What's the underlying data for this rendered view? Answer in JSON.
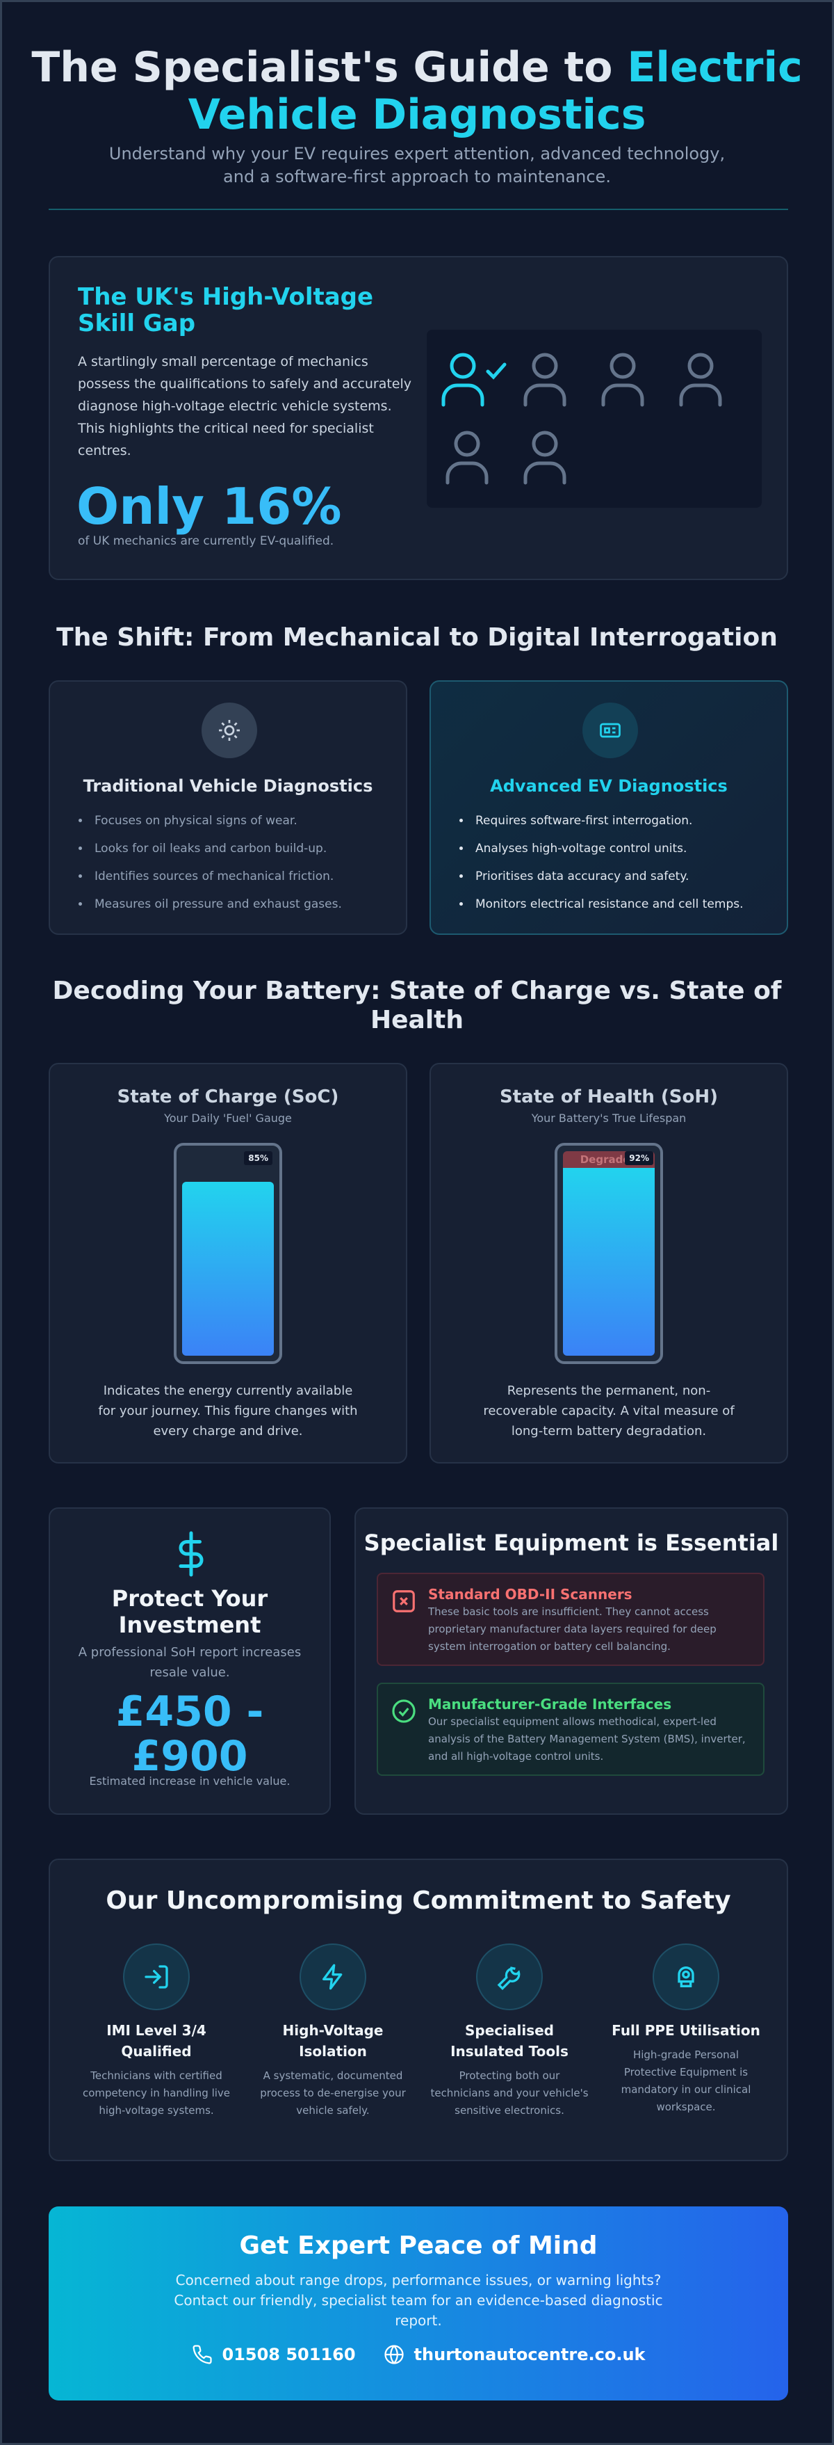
{
  "header": {
    "title_start": "The Specialist's Guide to ",
    "title_highlight": "Electric Vehicle Diagnostics",
    "subtitle": "Understand why your EV requires expert attention, advanced technology, and a software-first approach to maintenance."
  },
  "skill_gap": {
    "title": "The UK's High-Voltage Skill Gap",
    "body": "A startlingly small percentage of mechanics possess the qualifications to safely and accurately diagnose high-voltage electric vehicle systems. This highlights the critical need for specialist centres.",
    "stat": "Only 16%",
    "stat_caption": "of UK mechanics are currently EV-qualified."
  },
  "shift": {
    "title": "The Shift: From Mechanical to Digital Interrogation",
    "cards": [
      {
        "title": "Traditional Vehicle Diagnostics",
        "items": [
          "Focuses on physical signs of wear.",
          "Looks for oil leaks and carbon build-up.",
          "Identifies sources of mechanical friction.",
          "Measures oil pressure and exhaust gases."
        ]
      },
      {
        "title": "Advanced EV Diagnostics",
        "items": [
          "Requires software-first interrogation.",
          "Analyses high-voltage control units.",
          "Prioritises data accuracy and safety.",
          "Monitors electrical resistance and cell temps."
        ]
      }
    ]
  },
  "battery": {
    "title": "Decoding Your Battery: State of Charge vs. State of Health",
    "cards": [
      {
        "title": "State of Charge (SoC)",
        "subtitle": "Your Daily 'Fuel' Gauge",
        "level": 85,
        "level_label": "85%",
        "description": "Indicates the energy currently available for your journey. This figure changes with every charge and drive."
      },
      {
        "title": "State of Health (SoH)",
        "subtitle": "Your Battery's True Lifespan",
        "level": 92,
        "level_label": "92%",
        "degraded_label": "Degraded",
        "description": "Represents the permanent, non-recoverable capacity. A vital measure of long-term battery degradation."
      }
    ]
  },
  "investment": {
    "title": "Protect Your Investment",
    "body": "A professional SoH report increases resale value.",
    "amount": "£450 - £900",
    "caption": "Estimated increase in vehicle value."
  },
  "equipment": {
    "title": "Specialist Equipment is Essential",
    "items": [
      {
        "title": "Standard OBD-II Scanners",
        "body": "These basic tools are insufficient. They cannot access proprietary manufacturer data layers required for deep system interrogation or battery cell balancing."
      },
      {
        "title": "Manufacturer-Grade Interfaces",
        "body": "Our specialist equipment allows methodical, expert-led analysis of the Battery Management System (BMS), inverter, and all high-voltage control units."
      }
    ]
  },
  "safety": {
    "title": "Our Uncompromising Commitment to Safety",
    "items": [
      {
        "title": "IMI Level 3/4 Qualified",
        "body": "Technicians with certified competency in handling live high-voltage systems."
      },
      {
        "title": "High-Voltage Isolation",
        "body": "A systematic, documented process to de-energise your vehicle safely."
      },
      {
        "title": "Specialised Insulated Tools",
        "body": "Protecting both our technicians and your vehicle's sensitive electronics."
      },
      {
        "title": "Full PPE Utilisation",
        "body": "High-grade Personal Protective Equipment is mandatory in our clinical workspace."
      }
    ]
  },
  "cta": {
    "title": "Get Expert Peace of Mind",
    "body": "Concerned about range drops, performance issues, or warning lights? Contact our friendly, specialist team for an evidence-based diagnostic report.",
    "phone": "01508 501160",
    "website": "thurtonautocentre.co.uk"
  }
}
